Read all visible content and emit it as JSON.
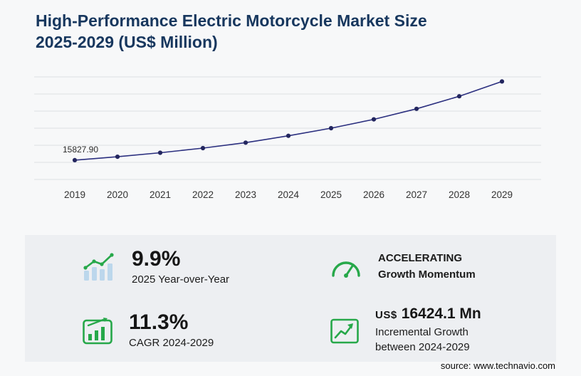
{
  "header": {
    "title_line1": "High-Performance Electric Motorcycle Market Size",
    "title_line2": "2025-2029 (US$ Million)"
  },
  "chart_data": {
    "type": "line",
    "title": "High-Performance Electric Motorcycle Market Size 2025-2029 (US$ Million)",
    "x": [
      "2019",
      "2020",
      "2021",
      "2022",
      "2023",
      "2024",
      "2025",
      "2026",
      "2027",
      "2028",
      "2029"
    ],
    "values": [
      15827.9,
      16857,
      18071,
      19480,
      21136,
      23199,
      25496,
      28173,
      31357,
      35151,
      39623
    ],
    "first_point_label": "15827.90",
    "ylabel": "US$ Million",
    "ylim": [
      10000,
      41000
    ],
    "grid": true,
    "grid_count": 7,
    "legend": "none",
    "line_color": "#2b2f7f",
    "marker_color": "#23265f",
    "grid_color": "#dcdfe2",
    "tick_color": "#333333",
    "label_color": "#2b2b2b"
  },
  "stats": {
    "yoy": {
      "icon": "bar-chart-growth-icon",
      "value": "9.9%",
      "label": "2025 Year-over-Year"
    },
    "momentum": {
      "icon": "speedometer-icon",
      "value": "ACCELERATING",
      "label": "Growth Momentum"
    },
    "cagr": {
      "icon": "boxed-bar-growth-icon",
      "value": "11.3%",
      "label": "CAGR 2024-2029"
    },
    "incremental": {
      "icon": "boxed-trend-arrow-icon",
      "prefix": "US$",
      "value": "16424.1 Mn",
      "label": "Incremental Growth between 2024-2029"
    }
  },
  "footer": {
    "source": "source: www.technavio.com"
  },
  "colors": {
    "accent_green": "#27a84a",
    "navy_title": "#17375e",
    "panel_bg": "#edeff2"
  }
}
